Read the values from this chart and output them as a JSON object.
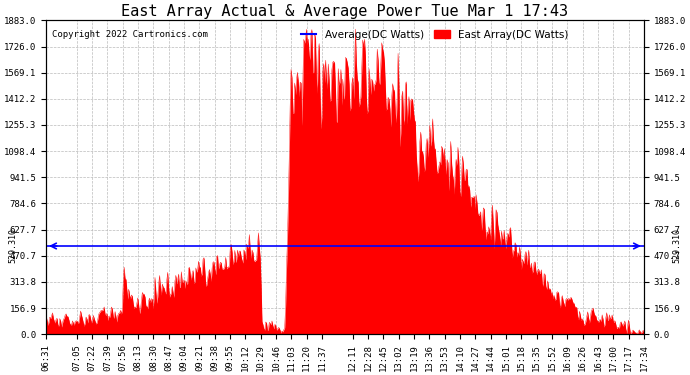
{
  "title": "East Array Actual & Average Power Tue Mar 1 17:43",
  "copyright": "Copyright 2022 Cartronics.com",
  "legend_average": "Average(DC Watts)",
  "legend_east": "East Array(DC Watts)",
  "legend_avg_color": "blue",
  "legend_east_color": "red",
  "y_ticks": [
    0.0,
    156.9,
    313.8,
    470.7,
    627.7,
    784.6,
    941.5,
    1098.4,
    1255.3,
    1412.2,
    1569.1,
    1726.0,
    1883.0
  ],
  "ylim": [
    0,
    1883.0
  ],
  "hline_value": 529.31,
  "hline_color": "blue",
  "background_color": "#ffffff",
  "fill_color": "red",
  "grid_color": "#bbbbbb",
  "x_labels": [
    "06:31",
    "07:05",
    "07:22",
    "07:39",
    "07:56",
    "08:13",
    "08:30",
    "08:47",
    "09:04",
    "09:21",
    "09:38",
    "09:55",
    "10:12",
    "10:29",
    "10:46",
    "11:03",
    "11:20",
    "11:37",
    "12:11",
    "12:28",
    "12:45",
    "13:02",
    "13:19",
    "13:36",
    "13:53",
    "14:10",
    "14:27",
    "14:44",
    "15:01",
    "15:18",
    "15:35",
    "15:52",
    "16:09",
    "16:26",
    "16:43",
    "17:00",
    "17:17",
    "17:34"
  ],
  "title_fontsize": 11,
  "tick_fontsize": 6.5,
  "copyright_fontsize": 6.5,
  "legend_fontsize": 7.5
}
